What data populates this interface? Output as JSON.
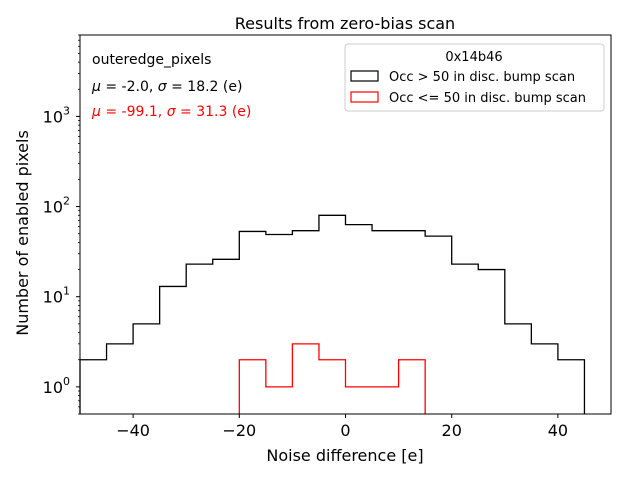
{
  "chart_data": {
    "type": "histogram",
    "title": "Results from zero-bias scan",
    "xlabel": "Noise difference [e]",
    "ylabel": "Number of enabled pixels",
    "xlim": [
      -50,
      50
    ],
    "ylim": [
      0.5,
      8000
    ],
    "yscale": "log",
    "xticks": [
      -40,
      -20,
      0,
      20,
      40
    ],
    "xtick_labels": [
      "−40",
      "−20",
      "0",
      "20",
      "40"
    ],
    "yticks": [
      1,
      10,
      100,
      1000
    ],
    "ytick_base": "10",
    "ytick_exponents": [
      "0",
      "1",
      "2",
      "3"
    ],
    "grid": false,
    "legend": {
      "title": "0x14b46",
      "placement": "top-right",
      "entries": [
        "Occ > 50 in disc. bump scan",
        "Occ <= 50 in disc. bump scan"
      ]
    },
    "annotations": {
      "region": "outeredge_pixels",
      "stats": [
        {
          "mu": "-2.0",
          "sigma": "18.2",
          "unit": "(e)",
          "color": "#000000"
        },
        {
          "mu": "-99.1",
          "sigma": "31.3",
          "unit": "(e)",
          "color": "#ff0000"
        }
      ]
    },
    "bin_edges": [
      -50,
      -45,
      -40,
      -35,
      -30,
      -25,
      -20,
      -15,
      -10,
      -5,
      0,
      5,
      10,
      15,
      20,
      25,
      30,
      35,
      40,
      45
    ],
    "series": [
      {
        "name": "Occ > 50 in disc. bump scan",
        "color": "#000000",
        "counts": [
          2,
          3,
          5,
          13,
          23,
          26,
          53,
          49,
          54,
          80,
          63,
          54,
          54,
          47,
          23,
          20,
          5,
          3,
          2
        ]
      },
      {
        "name": "Occ <= 50 in disc. bump scan",
        "color": "#ff0000",
        "counts": [
          0,
          0,
          0,
          0,
          0,
          0,
          2,
          1,
          3,
          2,
          1,
          1,
          2,
          0,
          0,
          0,
          0,
          0,
          0
        ]
      }
    ]
  }
}
